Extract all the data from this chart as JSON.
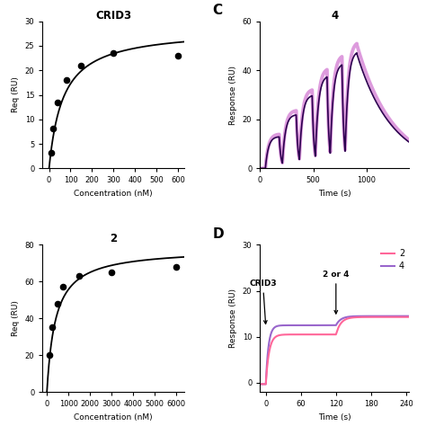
{
  "bg_color": "#ffffff",
  "panel_A": {
    "title": "CRID3",
    "xlabel": "Concentration (nM)",
    "ylabel": "Req (RU)",
    "xlim": [
      -30,
      630
    ],
    "ylim": [
      0,
      30
    ],
    "yticks": [
      0,
      5,
      10,
      15,
      20,
      25,
      30
    ],
    "xticks": [
      0,
      100,
      200,
      300,
      400,
      500,
      600
    ],
    "data_x": [
      10,
      20,
      40,
      80,
      150,
      300,
      600
    ],
    "data_y": [
      3.2,
      8.2,
      13.5,
      18.0,
      21.0,
      23.5,
      23.0
    ],
    "Kd": 65,
    "Rmax": 28.5
  },
  "panel_B": {
    "title": "2",
    "xlabel": "Concentration (nM)",
    "ylabel": "Req (RU)",
    "xlim": [
      -200,
      6400
    ],
    "ylim": [
      0,
      80
    ],
    "yticks": [
      0,
      20,
      40,
      60,
      80
    ],
    "xticks": [
      0,
      1000,
      2000,
      3000,
      4000,
      5000,
      6000
    ],
    "data_x": [
      100,
      250,
      500,
      750,
      1500,
      3000,
      6000
    ],
    "data_y": [
      20.0,
      35.0,
      48.0,
      57.0,
      63.0,
      65.0,
      68.0
    ],
    "Kd": 400,
    "Rmax": 78
  },
  "panel_C": {
    "title": "4",
    "xlabel": "Time (s)",
    "ylabel": "Response (RU)",
    "xlim": [
      0,
      1400
    ],
    "ylim": [
      0,
      60
    ],
    "yticks": [
      0,
      20,
      40,
      60
    ],
    "xticks": [
      0,
      500,
      1000
    ],
    "color_dark": "#2d0050",
    "color_light": "#cc66cc"
  },
  "panel_D": {
    "xlabel": "Time (s)",
    "ylabel": "Response (RU)",
    "xlim": [
      -10,
      245
    ],
    "ylim": [
      -2,
      30
    ],
    "yticks": [
      0,
      10,
      20,
      30
    ],
    "xticks": [
      0,
      60,
      120,
      180,
      240
    ],
    "color_2": "#ff6699",
    "color_4": "#9966cc"
  }
}
